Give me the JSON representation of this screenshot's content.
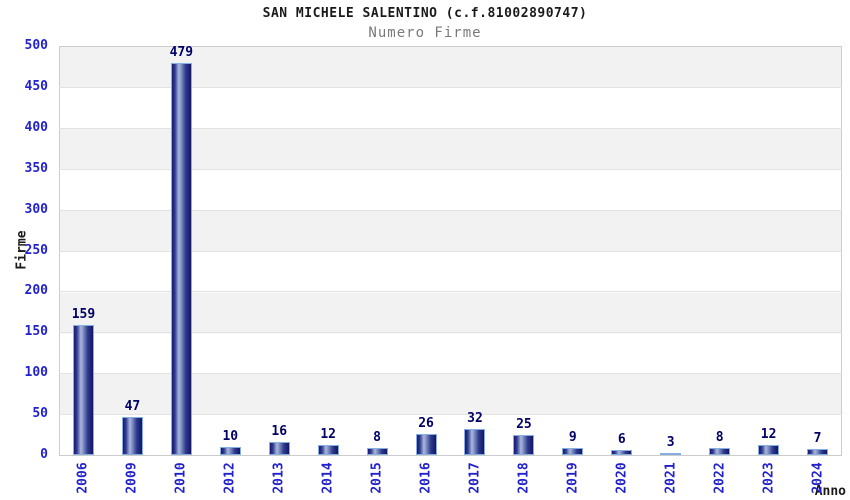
{
  "header": {
    "title": "SAN MICHELE SALENTINO (c.f.81002890747)",
    "subtitle": "Numero Firme"
  },
  "chart_data": {
    "type": "bar",
    "title": "SAN MICHELE SALENTINO (c.f.81002890747)",
    "subtitle": "Numero Firme",
    "categories": [
      "2006",
      "2009",
      "2010",
      "2012",
      "2013",
      "2014",
      "2015",
      "2016",
      "2017",
      "2018",
      "2019",
      "2020",
      "2021",
      "2022",
      "2023",
      "2024"
    ],
    "values": [
      159,
      47,
      479,
      10,
      16,
      12,
      8,
      26,
      32,
      25,
      9,
      6,
      3,
      8,
      12,
      7
    ],
    "xlabel": "Anno",
    "ylabel": "Firme",
    "ylim": [
      0,
      500
    ],
    "yticks": [
      0,
      50,
      100,
      150,
      200,
      250,
      300,
      350,
      400,
      450,
      500
    ],
    "grid": "horizontal alternating bands, gridline every 50",
    "legend_position": "none",
    "bar_value_labels": true
  },
  "colors": {
    "tick_label": "#2222cc",
    "value_label": "#000066",
    "bar_border": "#85aee3",
    "bar_dark": "#141465",
    "bar_highlight": "#aab6dc",
    "band_gray": "#f2f2f2",
    "grid_line": "#e2e2e2",
    "plot_border": "#cccccc",
    "title_color": "#1a1a1a",
    "subtitle_color": "#7a7a7a"
  }
}
